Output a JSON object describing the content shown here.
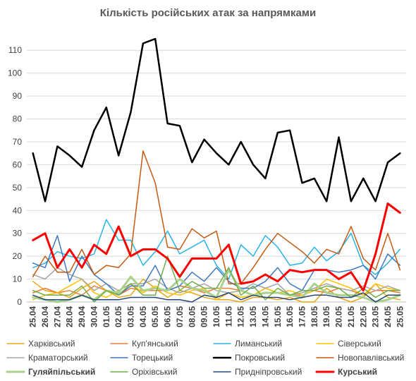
{
  "chart_data": {
    "type": "line",
    "title": "Кількість російських атак за напрямками",
    "xlabel": "",
    "ylabel": "",
    "ylim": [
      0,
      115
    ],
    "yticks": [
      0,
      10,
      20,
      30,
      40,
      50,
      60,
      70,
      80,
      90,
      100,
      110
    ],
    "grid": true,
    "legend_position": "bottom",
    "x": [
      "25.04",
      "26.04",
      "27.04",
      "28.04",
      "29.04",
      "30.04",
      "01.05",
      "02.05",
      "03.05",
      "04.05",
      "05.05",
      "06.05",
      "07.05",
      "08.05",
      "09.05",
      "10.05",
      "11.05",
      "12.05",
      "13.05",
      "14.05",
      "15.05",
      "16.05",
      "17.05",
      "18.05",
      "19.05",
      "20.05",
      "21.05",
      "22.05",
      "23.05",
      "24.05",
      "25.05"
    ],
    "series": [
      {
        "name": "Харківський",
        "color": "#e6a817",
        "width": 1.5,
        "bold": false,
        "values": [
          9,
          5,
          4,
          2,
          6,
          9,
          5,
          2,
          3,
          10,
          6,
          2,
          5,
          4,
          2,
          1,
          1,
          0,
          2,
          2,
          1,
          2,
          0,
          0,
          6,
          2,
          0,
          2,
          8,
          2,
          1
        ]
      },
      {
        "name": "Куп'янський",
        "color": "#ed7d31",
        "width": 1.5,
        "bold": false,
        "values": [
          4,
          6,
          4,
          5,
          3,
          7,
          5,
          3,
          6,
          5,
          5,
          5,
          7,
          6,
          4,
          6,
          6,
          5,
          3,
          6,
          4,
          3,
          3,
          5,
          4,
          6,
          5,
          3,
          5,
          5,
          4
        ]
      },
      {
        "name": "Лиманський",
        "color": "#28b4e6",
        "width": 1.5,
        "bold": false,
        "values": [
          15,
          17,
          22,
          20,
          19,
          21,
          36,
          27,
          27,
          16,
          22,
          31,
          21,
          24,
          27,
          16,
          10,
          25,
          20,
          29,
          24,
          16,
          17,
          24,
          18,
          22,
          30,
          16,
          12,
          17,
          23
        ]
      },
      {
        "name": "Сіверський",
        "color": "#ffc000",
        "width": 1.5,
        "bold": false,
        "values": [
          1,
          3,
          4,
          7,
          10,
          4,
          2,
          5,
          8,
          4,
          7,
          4,
          3,
          5,
          6,
          1,
          4,
          2,
          3,
          6,
          4,
          5,
          3,
          5,
          10,
          8,
          6,
          3,
          8,
          6,
          5
        ]
      },
      {
        "name": "Краматорський",
        "color": "#a5a5a5",
        "width": 1.5,
        "bold": false,
        "values": [
          12,
          10,
          15,
          12,
          10,
          5,
          8,
          5,
          8,
          8,
          10,
          6,
          4,
          6,
          8,
          5,
          4,
          5,
          8,
          6,
          8,
          3,
          4,
          6,
          8,
          6,
          5,
          7,
          5,
          7,
          5
        ]
      },
      {
        "name": "Торецький",
        "color": "#3e78c4",
        "width": 1.5,
        "bold": false,
        "values": [
          17,
          15,
          29,
          9,
          20,
          12,
          8,
          3,
          7,
          7,
          16,
          5,
          7,
          13,
          9,
          15,
          9,
          6,
          6,
          9,
          15,
          8,
          5,
          14,
          14,
          13,
          14,
          16,
          10,
          21,
          16
        ]
      },
      {
        "name": "Покровський",
        "color": "#000000",
        "width": 2.5,
        "bold": true,
        "values": [
          65,
          44,
          68,
          64,
          59,
          75,
          85,
          64,
          83,
          113,
          115,
          78,
          77,
          61,
          71,
          65,
          60,
          70,
          60,
          54,
          74,
          75,
          52,
          54,
          44,
          72,
          44,
          54,
          44,
          61,
          65
        ]
      },
      {
        "name": "Новопавлівський",
        "color": "#c55a11",
        "width": 1.5,
        "bold": false,
        "values": [
          11,
          20,
          13,
          13,
          23,
          12,
          16,
          15,
          21,
          66,
          52,
          24,
          23,
          32,
          28,
          31,
          8,
          8,
          15,
          23,
          30,
          26,
          22,
          17,
          23,
          21,
          33,
          19,
          14,
          30,
          14
        ]
      },
      {
        "name": "Гуляйпільський",
        "color": "#a9d18e",
        "width": 3,
        "bold": true,
        "values": [
          2,
          1,
          0,
          1,
          3,
          1,
          5,
          4,
          11,
          5,
          6,
          5,
          10,
          6,
          5,
          2,
          14,
          5,
          3,
          4,
          4,
          3,
          2,
          8,
          4,
          3,
          3,
          2,
          0,
          1,
          3
        ]
      },
      {
        "name": "Оріхівський",
        "color": "#70ad47",
        "width": 1.5,
        "bold": false,
        "values": [
          5,
          3,
          3,
          3,
          7,
          0,
          5,
          3,
          8,
          3,
          3,
          20,
          5,
          9,
          6,
          6,
          15,
          3,
          7,
          1,
          6,
          3,
          5,
          5,
          7,
          6,
          2,
          6,
          2,
          5,
          5
        ]
      },
      {
        "name": "Придніпровський",
        "color": "#264478",
        "width": 1.5,
        "bold": false,
        "values": [
          3,
          1,
          1,
          1,
          3,
          1,
          1,
          1,
          2,
          2,
          2,
          1,
          1,
          0,
          3,
          2,
          4,
          1,
          3,
          2,
          2,
          1,
          2,
          3,
          3,
          2,
          2,
          4,
          0,
          3,
          3
        ]
      },
      {
        "name": "Курський",
        "color": "#ff0000",
        "width": 3,
        "bold": true,
        "values": [
          27,
          30,
          15,
          23,
          15,
          25,
          21,
          33,
          20,
          23,
          23,
          19,
          11,
          19,
          19,
          19,
          25,
          8,
          9,
          12,
          9,
          14,
          13,
          14,
          14,
          10,
          13,
          5,
          21,
          43,
          39
        ]
      }
    ]
  }
}
